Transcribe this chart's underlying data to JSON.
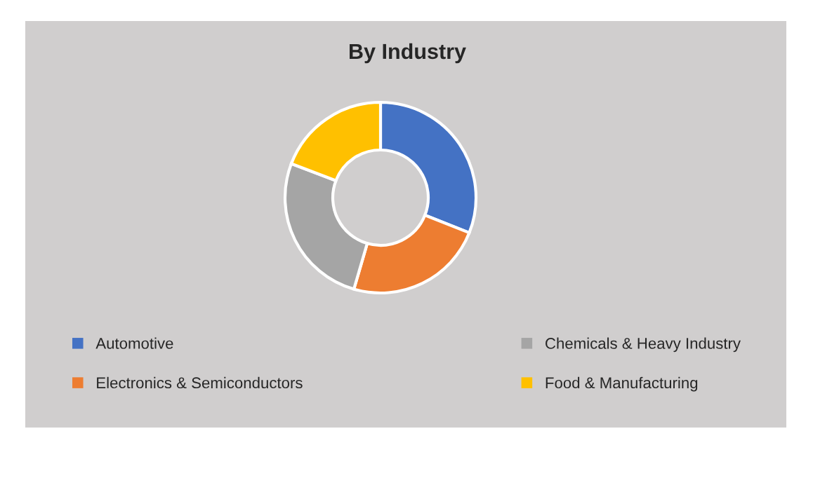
{
  "chart_data": {
    "type": "donut",
    "title": "By Industry",
    "categories": [
      "Automotive",
      "Electronics & Semiconductors",
      "Chemicals & Heavy Industry",
      "Food & Manufacturing"
    ],
    "values": [
      31,
      23.5,
      26.3,
      19.2
    ],
    "colors": [
      "#4472c4",
      "#ed7d31",
      "#a5a5a5",
      "#ffc000"
    ],
    "legend": "bottom"
  }
}
